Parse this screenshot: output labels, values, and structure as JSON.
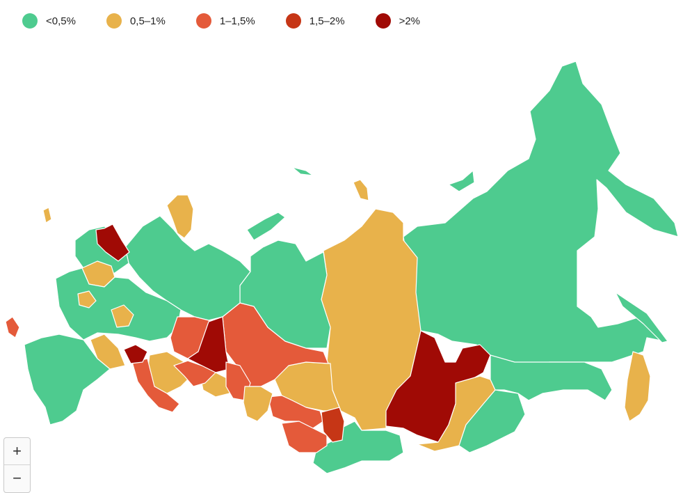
{
  "legend": [
    {
      "label": "<0,5%",
      "color": "#4ecb8f"
    },
    {
      "label": "0,5–1%",
      "color": "#e8b24b"
    },
    {
      "label": "1–1,5%",
      "color": "#e45a3a"
    },
    {
      "label": "1,5–2%",
      "color": "#c63616"
    },
    {
      "label": ">2%",
      "color": "#a00a05"
    }
  ],
  "zoom": {
    "in_label": "+",
    "out_label": "−"
  }
}
